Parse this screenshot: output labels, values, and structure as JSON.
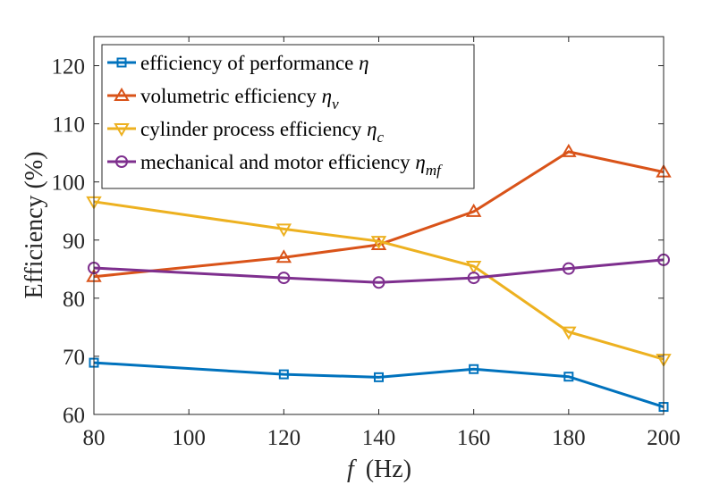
{
  "chart_data": {
    "type": "line",
    "title": "",
    "xlabel_var": "f",
    "xlabel_unit": "(Hz)",
    "ylabel": "Efficiency (%)",
    "xlim": [
      80,
      200
    ],
    "ylim": [
      60,
      125
    ],
    "x_ticks": [
      80,
      100,
      120,
      140,
      160,
      180,
      200
    ],
    "y_ticks": [
      60,
      70,
      80,
      90,
      100,
      110,
      120
    ],
    "grid": false,
    "legend_position": "top-left",
    "x": [
      80,
      120,
      140,
      160,
      180,
      200
    ],
    "series": [
      {
        "name": "efficiency of performance",
        "label_text": "efficiency of performance ",
        "symbol": "η",
        "subscript": "",
        "marker": "square",
        "color": "#0072BD",
        "values": [
          68.9,
          66.9,
          66.4,
          67.8,
          66.5,
          61.3
        ]
      },
      {
        "name": "volumetric efficiency",
        "label_text": "volumetric efficiency ",
        "symbol": "η",
        "subscript": "v",
        "marker": "triangle-up",
        "color": "#D95319",
        "values": [
          83.7,
          87.0,
          89.2,
          94.9,
          105.2,
          101.7
        ]
      },
      {
        "name": "cylinder process efficiency",
        "label_text": "cylinder process efficiency ",
        "symbol": "η",
        "subscript": "c",
        "marker": "triangle-down",
        "color": "#EDB120",
        "values": [
          96.6,
          91.9,
          89.8,
          85.5,
          74.2,
          69.5
        ]
      },
      {
        "name": "mechanical and motor efficiency",
        "label_text": "mechanical and motor efficiency ",
        "symbol": "η",
        "subscript": "mf",
        "marker": "circle",
        "color": "#7E2F8E",
        "values": [
          85.2,
          83.5,
          82.7,
          83.5,
          85.1,
          86.6
        ]
      }
    ]
  }
}
